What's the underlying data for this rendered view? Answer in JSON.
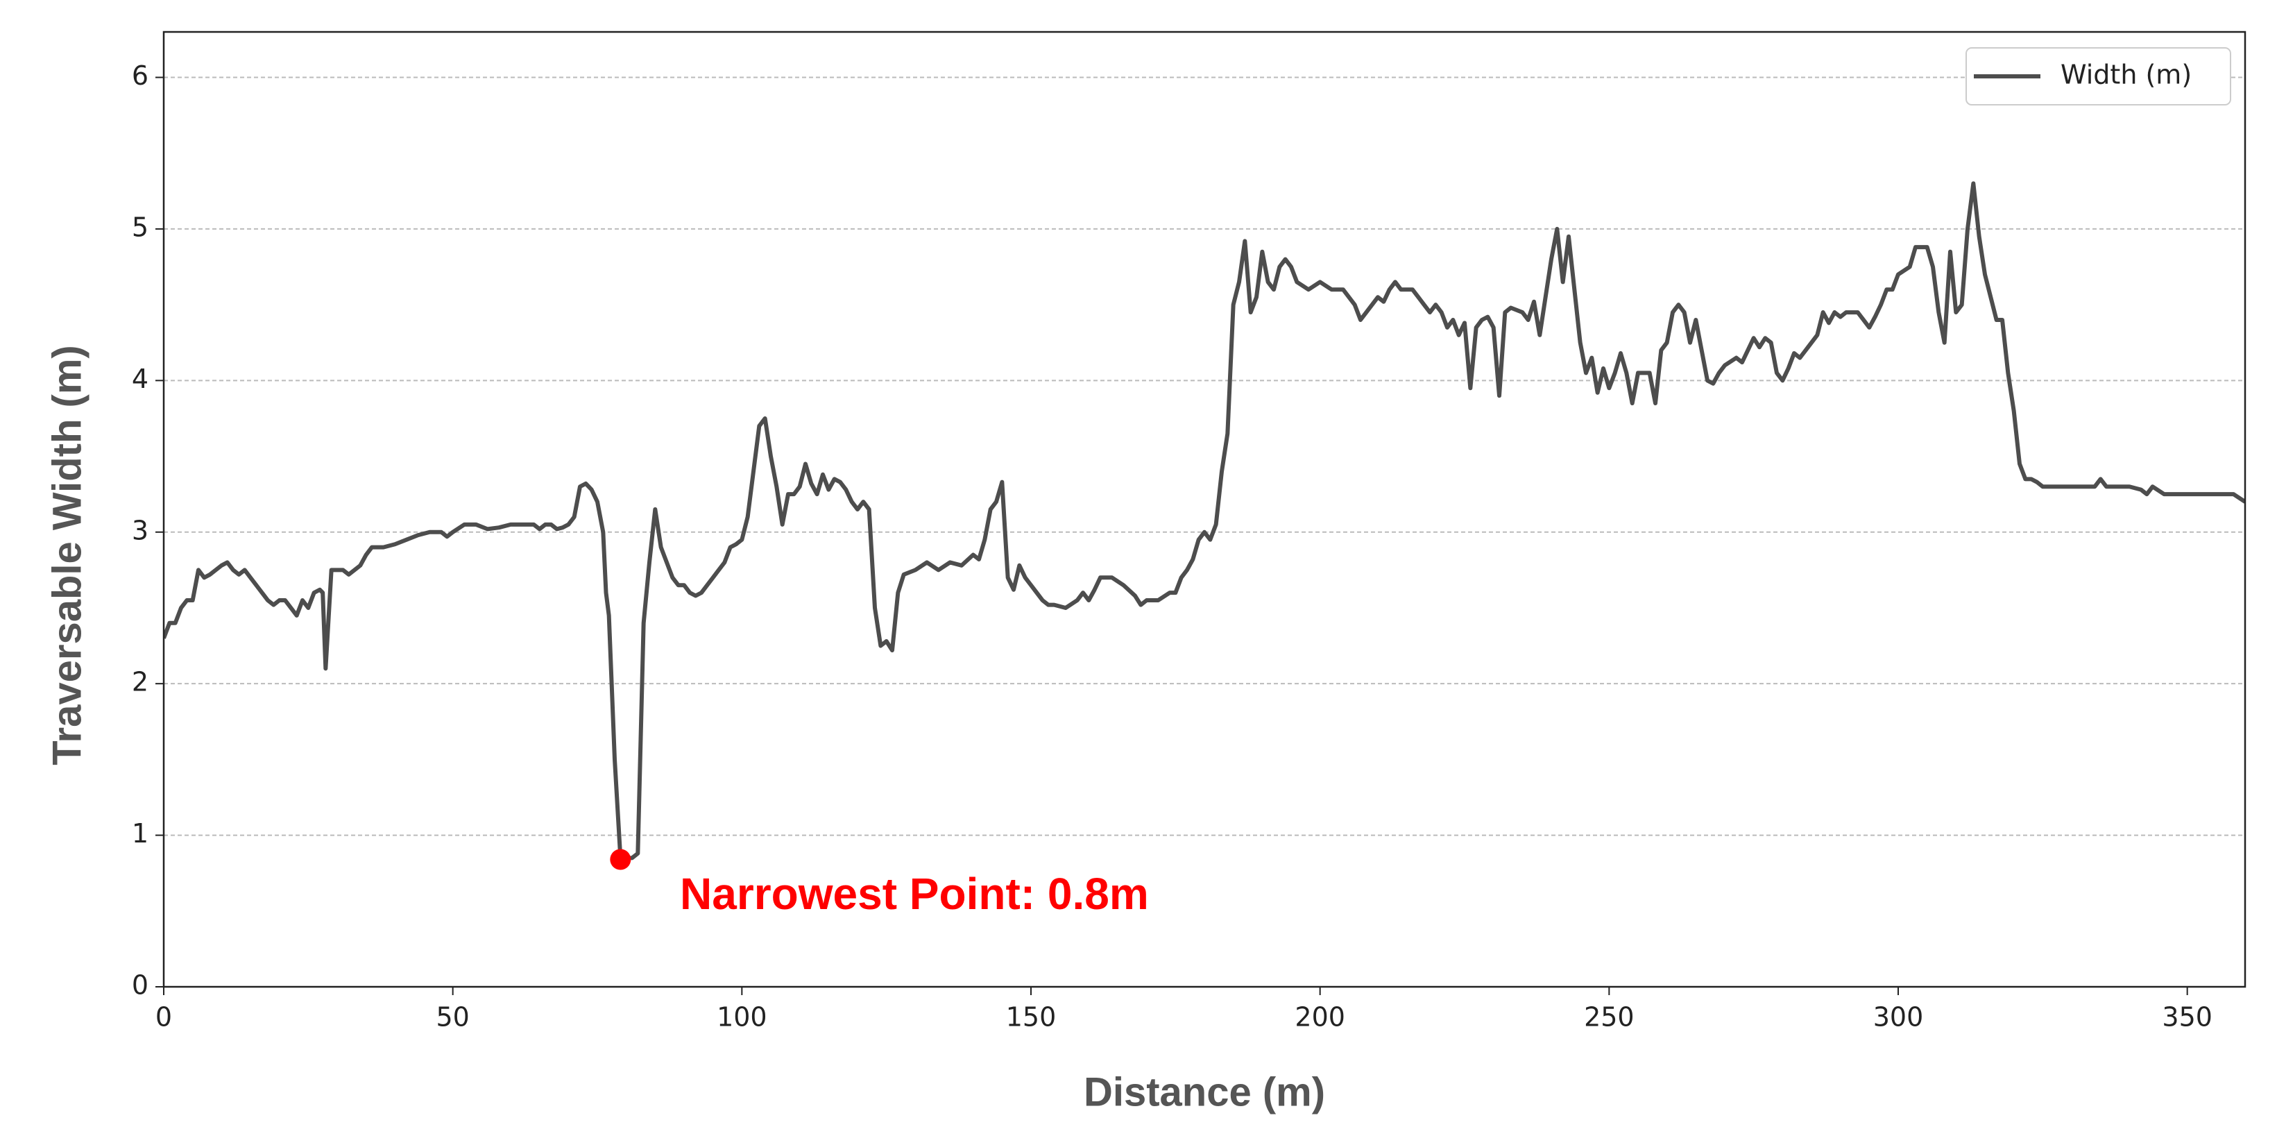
{
  "chart_data": {
    "type": "line",
    "xlabel": "Distance (m)",
    "ylabel": "Traversable Width (m)",
    "x": [
      0,
      1,
      2,
      3,
      4,
      5,
      6,
      7,
      8,
      10,
      11,
      12,
      13,
      14,
      15,
      16,
      18,
      19,
      20,
      21,
      22,
      23,
      24,
      25,
      26,
      27,
      27.5,
      28,
      29,
      30,
      31,
      32,
      33,
      34,
      35,
      36,
      38,
      40,
      42,
      44,
      46,
      48,
      49,
      50,
      52,
      54,
      56,
      58,
      60,
      62,
      64,
      65,
      66,
      67,
      68,
      69,
      70,
      71,
      72,
      73,
      74,
      75,
      76,
      76.5,
      77,
      78,
      79,
      80,
      81,
      82,
      83,
      84,
      85,
      86,
      87,
      88,
      89,
      90,
      91,
      92,
      93,
      94,
      95,
      96,
      97,
      98,
      99,
      100,
      101,
      102,
      103,
      104,
      105,
      106,
      107,
      108,
      109,
      110,
      111,
      112,
      113,
      114,
      115,
      116,
      117,
      118,
      119,
      120,
      121,
      122,
      123,
      124,
      125,
      126,
      127,
      128,
      130,
      132,
      134,
      136,
      138,
      140,
      141,
      142,
      143,
      144,
      145,
      146,
      147,
      148,
      149,
      150,
      151,
      152,
      153,
      154,
      156,
      158,
      159,
      160,
      161,
      162,
      164,
      166,
      168,
      169,
      170,
      172,
      174,
      175,
      176,
      177,
      178,
      179,
      180,
      181,
      182,
      183,
      184,
      185,
      186,
      187,
      188,
      189,
      190,
      191,
      192,
      193,
      194,
      195,
      196,
      198,
      200,
      202,
      204,
      206,
      207,
      208,
      210,
      211,
      212,
      213,
      214,
      216,
      217,
      218,
      219,
      220,
      221,
      222,
      223,
      224,
      225,
      226,
      227,
      228,
      229,
      230,
      231,
      232,
      233,
      235,
      236,
      237,
      238,
      239,
      240,
      241,
      242,
      243,
      244,
      245,
      246,
      247,
      248,
      249,
      250,
      251,
      252,
      253,
      254,
      255,
      257,
      258,
      259,
      260,
      261,
      262,
      263,
      264,
      265,
      266,
      267,
      268,
      269,
      270,
      272,
      273,
      274,
      275,
      276,
      277,
      278,
      279,
      280,
      281,
      282,
      283,
      284,
      285,
      286,
      287,
      288,
      289,
      290,
      291,
      293,
      294,
      295,
      296,
      297,
      298,
      299,
      300,
      302,
      303,
      305,
      306,
      307,
      308,
      309,
      310,
      311,
      312,
      313,
      314,
      315,
      316,
      317,
      318,
      319,
      320,
      321,
      322,
      323,
      324,
      325,
      330,
      334,
      335,
      336,
      340,
      342,
      343,
      344,
      346,
      350,
      355,
      358,
      360
    ],
    "series": [
      {
        "name": "Width (m)",
        "color": "#4d4d4d",
        "values": [
          2.3,
          2.4,
          2.4,
          2.5,
          2.55,
          2.55,
          2.75,
          2.7,
          2.72,
          2.78,
          2.8,
          2.75,
          2.72,
          2.75,
          2.7,
          2.65,
          2.55,
          2.52,
          2.55,
          2.55,
          2.5,
          2.45,
          2.55,
          2.5,
          2.6,
          2.62,
          2.6,
          2.1,
          2.75,
          2.75,
          2.75,
          2.72,
          2.75,
          2.78,
          2.85,
          2.9,
          2.9,
          2.92,
          2.95,
          2.98,
          3.0,
          3.0,
          2.97,
          3.0,
          3.05,
          3.05,
          3.02,
          3.03,
          3.05,
          3.05,
          3.05,
          3.02,
          3.05,
          3.05,
          3.02,
          3.03,
          3.05,
          3.1,
          3.3,
          3.32,
          3.28,
          3.2,
          3.0,
          2.6,
          2.45,
          1.5,
          0.85,
          0.85,
          0.85,
          0.88,
          2.4,
          2.8,
          3.15,
          2.9,
          2.8,
          2.7,
          2.65,
          2.65,
          2.6,
          2.58,
          2.6,
          2.65,
          2.7,
          2.75,
          2.8,
          2.9,
          2.92,
          2.95,
          3.1,
          3.4,
          3.7,
          3.75,
          3.5,
          3.3,
          3.05,
          3.25,
          3.25,
          3.3,
          3.45,
          3.32,
          3.25,
          3.38,
          3.28,
          3.35,
          3.33,
          3.28,
          3.2,
          3.15,
          3.2,
          3.15,
          2.5,
          2.25,
          2.28,
          2.22,
          2.6,
          2.72,
          2.75,
          2.8,
          2.75,
          2.8,
          2.78,
          2.85,
          2.82,
          2.95,
          3.15,
          3.2,
          3.33,
          2.7,
          2.62,
          2.78,
          2.7,
          2.65,
          2.6,
          2.55,
          2.52,
          2.52,
          2.5,
          2.55,
          2.6,
          2.55,
          2.62,
          2.7,
          2.7,
          2.65,
          2.58,
          2.52,
          2.55,
          2.55,
          2.6,
          2.6,
          2.7,
          2.75,
          2.82,
          2.95,
          3.0,
          2.95,
          3.05,
          3.4,
          3.65,
          4.5,
          4.65,
          4.92,
          4.45,
          4.55,
          4.85,
          4.65,
          4.6,
          4.75,
          4.8,
          4.75,
          4.65,
          4.6,
          4.65,
          4.6,
          4.6,
          4.5,
          4.4,
          4.45,
          4.55,
          4.52,
          4.6,
          4.65,
          4.6,
          4.6,
          4.55,
          4.5,
          4.45,
          4.5,
          4.45,
          4.35,
          4.4,
          4.3,
          4.38,
          3.95,
          4.35,
          4.4,
          4.42,
          4.35,
          3.9,
          4.45,
          4.48,
          4.45,
          4.4,
          4.52,
          4.3,
          4.55,
          4.8,
          5.0,
          4.65,
          4.95,
          4.6,
          4.25,
          4.05,
          4.15,
          3.92,
          4.08,
          3.95,
          4.05,
          4.18,
          4.05,
          3.85,
          4.05,
          4.05,
          3.85,
          4.2,
          4.25,
          4.45,
          4.5,
          4.45,
          4.25,
          4.4,
          4.2,
          4.0,
          3.98,
          4.05,
          4.1,
          4.15,
          4.12,
          4.2,
          4.28,
          4.22,
          4.28,
          4.25,
          4.05,
          4.0,
          4.08,
          4.18,
          4.15,
          4.2,
          4.25,
          4.3,
          4.45,
          4.38,
          4.45,
          4.42,
          4.45,
          4.45,
          4.4,
          4.35,
          4.42,
          4.5,
          4.6,
          4.6,
          4.7,
          4.75,
          4.88,
          4.88,
          4.75,
          4.45,
          4.25,
          4.85,
          4.45,
          4.5,
          5.0,
          5.3,
          4.95,
          4.7,
          4.55,
          4.4,
          4.4,
          4.05,
          3.8,
          3.45,
          3.35,
          3.35,
          3.33,
          3.3,
          3.3,
          3.3,
          3.35,
          3.3,
          3.3,
          3.28,
          3.25,
          3.3,
          3.25,
          3.25,
          3.25,
          3.25,
          3.2
        ]
      }
    ],
    "annotation": {
      "text": "Narrowest Point: 0.8m",
      "x": 79,
      "y": 0.84,
      "color": "#ff0000"
    },
    "xlim": [
      0,
      360
    ],
    "xticks": [
      0,
      50,
      100,
      150,
      200,
      250,
      300,
      350
    ],
    "ylim": [
      0,
      6.3
    ],
    "yticks": [
      0,
      1,
      2,
      3,
      4,
      5,
      6
    ],
    "grid": true,
    "legend": "upper right"
  }
}
